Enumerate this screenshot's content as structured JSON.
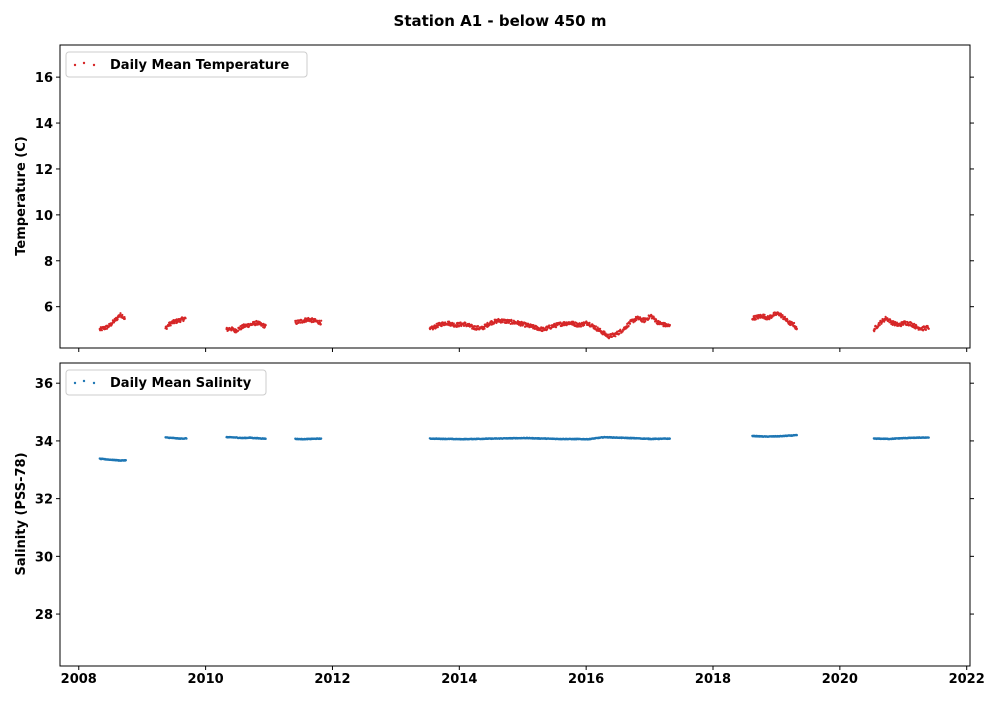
{
  "figure": {
    "title": "Station A1 - below 450 m"
  },
  "x_axis": {
    "tick_labels": [
      "2008",
      "2010",
      "2012",
      "2014",
      "2016",
      "2018",
      "2020",
      "2022"
    ]
  },
  "chart_data": [
    {
      "type": "scatter",
      "ylabel": "Temperature (C)",
      "xlim": [
        "2007-09-15",
        "2022-01-20"
      ],
      "ylim": [
        4.2,
        17.4
      ],
      "yticks": [
        6,
        8,
        10,
        12,
        14,
        16
      ],
      "grid": false,
      "legend_position": "top-left",
      "color": "#d62728",
      "series": [
        {
          "name": "Daily Mean Temperature",
          "segments": [
            {
              "x": [
                "2008-05-01",
                "2008-05-20",
                "2008-06-10",
                "2008-07-01",
                "2008-07-20",
                "2008-08-10",
                "2008-08-25",
                "2008-09-10",
                "2008-09-25"
              ],
              "y": [
                5.0,
                5.05,
                5.1,
                5.2,
                5.35,
                5.5,
                5.65,
                5.6,
                5.45
              ]
            },
            {
              "x": [
                "2009-05-15",
                "2009-06-01",
                "2009-06-20",
                "2009-07-10",
                "2009-08-01",
                "2009-08-20",
                "2009-09-10"
              ],
              "y": [
                5.05,
                5.2,
                5.3,
                5.35,
                5.4,
                5.45,
                5.5
              ]
            },
            {
              "x": [
                "2010-05-01",
                "2010-05-25",
                "2010-06-20",
                "2010-07-15",
                "2010-08-10",
                "2010-09-05",
                "2010-10-01",
                "2010-10-25",
                "2010-11-20",
                "2010-12-15"
              ],
              "y": [
                5.0,
                5.05,
                4.95,
                5.05,
                5.15,
                5.2,
                5.25,
                5.3,
                5.2,
                5.15
              ]
            },
            {
              "x": [
                "2011-06-01",
                "2011-06-25",
                "2011-07-20",
                "2011-08-15",
                "2011-09-10",
                "2011-10-05",
                "2011-10-30"
              ],
              "y": [
                5.3,
                5.35,
                5.4,
                5.45,
                5.4,
                5.35,
                5.3
              ]
            },
            {
              "x": [
                "2013-07-15",
                "2013-09-01",
                "2013-10-20",
                "2013-12-10",
                "2014-01-30",
                "2014-03-20",
                "2014-05-10",
                "2014-06-30",
                "2014-08-20",
                "2014-10-10",
                "2014-11-30",
                "2015-01-20",
                "2015-03-10",
                "2015-05-01",
                "2015-06-20",
                "2015-08-10",
                "2015-09-30",
                "2015-11-20",
                "2016-01-10",
                "2016-02-20",
                "2016-04-01",
                "2016-05-10",
                "2016-06-20",
                "2016-08-01",
                "2016-09-10",
                "2016-10-20",
                "2016-12-01",
                "2017-01-10",
                "2017-02-20",
                "2017-04-01",
                "2017-04-30"
              ],
              "y": [
                5.0,
                5.2,
                5.3,
                5.2,
                5.25,
                5.1,
                5.05,
                5.3,
                5.4,
                5.35,
                5.3,
                5.2,
                5.1,
                5.0,
                5.15,
                5.25,
                5.3,
                5.2,
                5.3,
                5.1,
                4.9,
                4.7,
                4.8,
                5.0,
                5.3,
                5.5,
                5.4,
                5.6,
                5.3,
                5.2,
                5.15
              ]
            },
            {
              "x": [
                "2018-08-15",
                "2018-09-15",
                "2018-10-15",
                "2018-11-15",
                "2018-12-15",
                "2019-01-15",
                "2019-02-15",
                "2019-03-15",
                "2019-04-15",
                "2019-05-01"
              ],
              "y": [
                5.5,
                5.55,
                5.6,
                5.5,
                5.65,
                5.7,
                5.5,
                5.3,
                5.2,
                4.95
              ]
            },
            {
              "x": [
                "2020-07-15",
                "2020-08-20",
                "2020-09-25",
                "2020-10-30",
                "2020-12-05",
                "2021-01-10",
                "2021-02-15",
                "2021-03-20",
                "2021-04-25",
                "2021-05-30"
              ],
              "y": [
                5.0,
                5.3,
                5.5,
                5.3,
                5.2,
                5.3,
                5.25,
                5.1,
                5.05,
                5.1
              ]
            }
          ]
        }
      ]
    },
    {
      "type": "scatter",
      "ylabel": "Salinity (PSS-78)",
      "xlim": [
        "2007-09-15",
        "2022-01-20"
      ],
      "ylim": [
        26.2,
        36.7
      ],
      "yticks": [
        28,
        30,
        32,
        34,
        36
      ],
      "grid": false,
      "legend_position": "top-left",
      "color": "#1f77b4",
      "series": [
        {
          "name": "Daily Mean Salinity",
          "segments": [
            {
              "x": [
                "2008-05-01",
                "2008-06-10",
                "2008-07-20",
                "2008-08-30",
                "2008-10-01"
              ],
              "y": [
                33.38,
                33.36,
                33.34,
                33.32,
                33.33
              ]
            },
            {
              "x": [
                "2009-05-15",
                "2009-06-25",
                "2009-08-05",
                "2009-09-15"
              ],
              "y": [
                34.12,
                34.1,
                34.08,
                34.09
              ]
            },
            {
              "x": [
                "2010-05-01",
                "2010-06-15",
                "2010-08-01",
                "2010-09-15",
                "2010-11-01",
                "2010-12-15"
              ],
              "y": [
                34.13,
                34.12,
                34.1,
                34.11,
                34.09,
                34.08
              ]
            },
            {
              "x": [
                "2011-06-01",
                "2011-07-15",
                "2011-09-01",
                "2011-10-30"
              ],
              "y": [
                34.07,
                34.06,
                34.07,
                34.08
              ]
            },
            {
              "x": [
                "2013-07-15",
                "2014-01-15",
                "2014-07-15",
                "2015-01-15",
                "2015-07-15",
                "2016-01-15",
                "2016-04-15",
                "2016-07-15",
                "2017-01-15",
                "2017-04-30"
              ],
              "y": [
                34.08,
                34.06,
                34.08,
                34.1,
                34.07,
                34.06,
                34.13,
                34.11,
                34.07,
                34.08
              ]
            },
            {
              "x": [
                "2018-08-15",
                "2018-11-01",
                "2019-01-15",
                "2019-05-01"
              ],
              "y": [
                34.17,
                34.15,
                34.16,
                34.2
              ]
            },
            {
              "x": [
                "2020-07-15",
                "2020-10-15",
                "2021-01-15",
                "2021-05-30"
              ],
              "y": [
                34.08,
                34.07,
                34.1,
                34.12
              ]
            }
          ]
        }
      ]
    }
  ]
}
